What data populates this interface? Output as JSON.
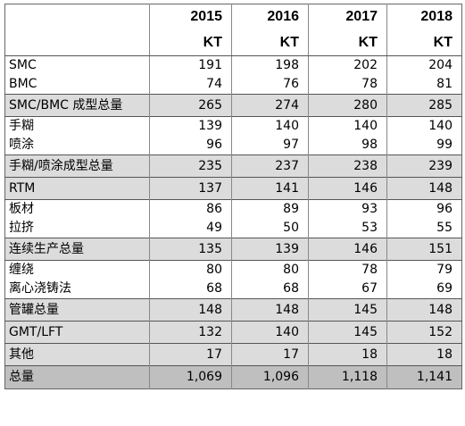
{
  "header": {
    "years": [
      "2015",
      "2016",
      "2017",
      "2018"
    ],
    "unit": "KT"
  },
  "rows": [
    {
      "label": "SMC",
      "values": [
        "191",
        "198",
        "202",
        "204"
      ],
      "style": "normal"
    },
    {
      "label": "BMC",
      "values": [
        "74",
        "76",
        "78",
        "81"
      ],
      "style": "normal"
    },
    {
      "label": "SMC/BMC 成型总量",
      "values": [
        "265",
        "274",
        "280",
        "285"
      ],
      "style": "total"
    },
    {
      "label": "手糊",
      "values": [
        "139",
        "140",
        "140",
        "140"
      ],
      "style": "normal"
    },
    {
      "label": "喷涂",
      "values": [
        "96",
        "97",
        "98",
        "99"
      ],
      "style": "normal"
    },
    {
      "label": "手糊/喷涂成型总量",
      "values": [
        "235",
        "237",
        "238",
        "239"
      ],
      "style": "total"
    },
    {
      "label": "RTM",
      "values": [
        "137",
        "141",
        "146",
        "148"
      ],
      "style": "total"
    },
    {
      "label": "板材",
      "values": [
        "86",
        "89",
        "93",
        "96"
      ],
      "style": "normal"
    },
    {
      "label": "拉挤",
      "values": [
        "49",
        "50",
        "53",
        "55"
      ],
      "style": "normal"
    },
    {
      "label": "连续生产总量",
      "values": [
        "135",
        "139",
        "146",
        "151"
      ],
      "style": "total"
    },
    {
      "label": "缠绕",
      "values": [
        "80",
        "80",
        "78",
        "79"
      ],
      "style": "normal"
    },
    {
      "label": "离心浇铸法",
      "values": [
        "68",
        "68",
        "67",
        "69"
      ],
      "style": "normal"
    },
    {
      "label": "管罐总量",
      "values": [
        "148",
        "148",
        "145",
        "148"
      ],
      "style": "total"
    },
    {
      "label": "GMT/LFT",
      "values": [
        "132",
        "140",
        "145",
        "152"
      ],
      "style": "total"
    },
    {
      "label": "其他",
      "values": [
        "17",
        "17",
        "18",
        "18"
      ],
      "style": "total"
    },
    {
      "label": "总量",
      "values": [
        "1,069",
        "1,096",
        "1,118",
        "1,141"
      ],
      "style": "grand"
    }
  ]
}
